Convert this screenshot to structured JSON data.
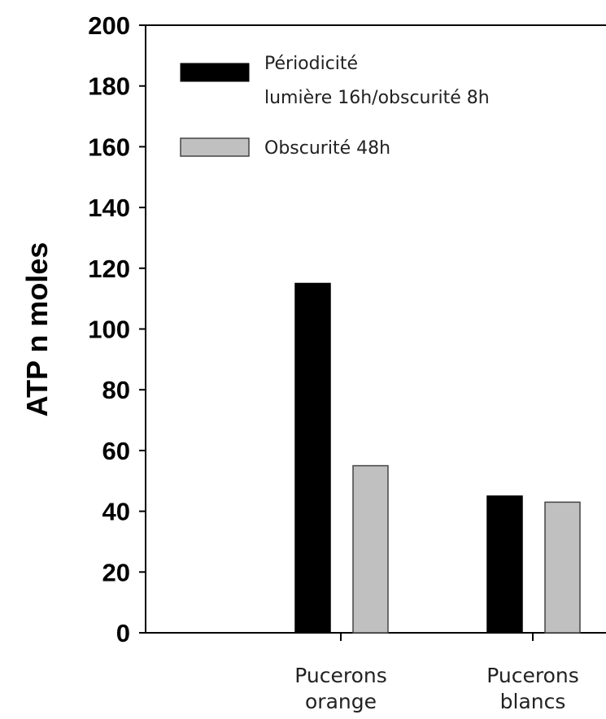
{
  "chart_data": {
    "type": "bar",
    "title": "",
    "xlabel": "",
    "ylabel": "ATP n moles",
    "ylim": [
      0,
      200
    ],
    "yticks": [
      "0",
      "20",
      "40",
      "60",
      "80",
      "100",
      "120",
      "140",
      "160",
      "180",
      "200"
    ],
    "categories": [
      {
        "line1": "Pucerons",
        "line2": "orange"
      },
      {
        "line1": "Pucerons",
        "line2": "blancs"
      }
    ],
    "series": [
      {
        "name_line1": "Périodicité",
        "name_line2": "lumière 16h/obscurité 8h",
        "color": "#000000",
        "values": [
          115,
          45
        ]
      },
      {
        "name_line1": "Obscurité 48h",
        "name_line2": "",
        "color": "#c0c0c0",
        "values": [
          55,
          43
        ]
      }
    ],
    "grid": false,
    "legend_position": "top-left"
  }
}
